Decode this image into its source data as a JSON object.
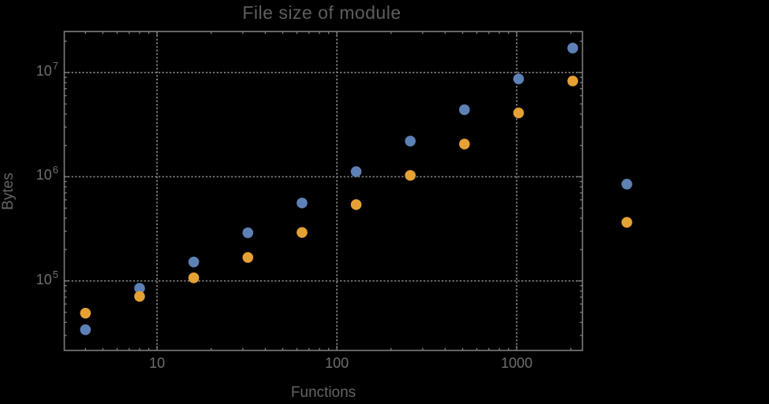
{
  "chart_data": {
    "type": "scatter",
    "title": "File size of module",
    "xlabel": "Functions",
    "ylabel": "Bytes",
    "x_scale": "log",
    "y_scale": "log",
    "xlim": [
      3.05,
      2320
    ],
    "ylim": [
      21500,
      24800000
    ],
    "grid": "dotted major gridlines at powers of ten",
    "legend": "none",
    "x": [
      4,
      8,
      16,
      32,
      64,
      128,
      256,
      512,
      1024,
      2048,
      4096
    ],
    "series": [
      {
        "name": "series-blue",
        "color": "#5E81B5",
        "values": [
          34000,
          85000,
          152000,
          290000,
          560000,
          1120000,
          2200000,
          4400000,
          8700000,
          17200000,
          850000
        ]
      },
      {
        "name": "series-orange",
        "color": "#E6A135",
        "values": [
          49000,
          71000,
          107000,
          168000,
          292000,
          540000,
          1030000,
          2060000,
          4100000,
          8300000,
          365000
        ]
      }
    ],
    "x_ticks": [
      {
        "value": 10,
        "label": "10"
      },
      {
        "value": 100,
        "label": "100"
      },
      {
        "value": 1000,
        "label": "1000"
      }
    ],
    "y_ticks": [
      {
        "value": 100000,
        "base": "10",
        "exp": "5"
      },
      {
        "value": 1000000,
        "base": "10",
        "exp": "6"
      },
      {
        "value": 10000000,
        "base": "10",
        "exp": "7"
      }
    ]
  },
  "colors": {
    "background": "#000000",
    "frame": "#7d7d7d",
    "grid": "#8a8a8a",
    "tick_text": "#6f6f6f",
    "title_text": "#5e5e5e",
    "axis_label_text": "#646464"
  }
}
